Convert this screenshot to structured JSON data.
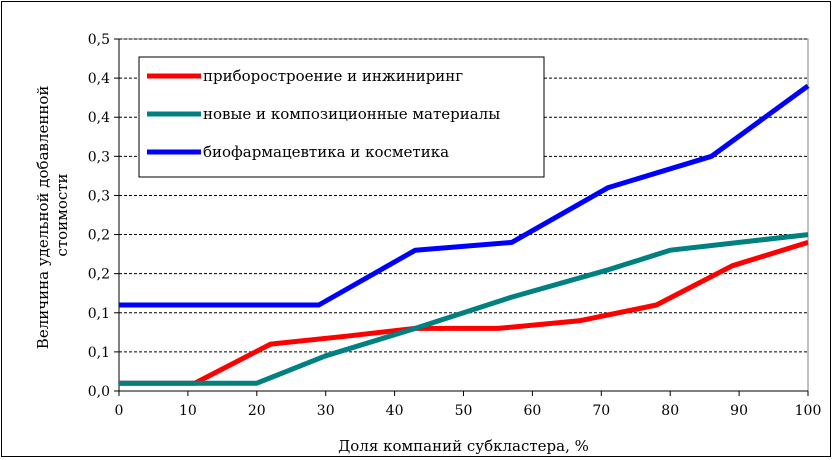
{
  "chart_data": {
    "type": "line",
    "title": "",
    "xlabel": "Доля компаний субкластера, %",
    "ylabel": "Величина удельной добавленной стоимости",
    "ylabel_lines": [
      "Величина удельной добавленной",
      "стоимости"
    ],
    "x_ticks": [
      "0",
      "10",
      "20",
      "30",
      "40",
      "50",
      "60",
      "70",
      "80",
      "90",
      "100"
    ],
    "y_ticks": [
      "0,0",
      "0,1",
      "0,1",
      "0,2",
      "0,2",
      "0,3",
      "0,3",
      "0,4",
      "0,4",
      "0,5"
    ],
    "xlim": [
      0,
      100
    ],
    "ylim": [
      0,
      0.45
    ],
    "grid": "horizontal-dashed",
    "legend_position": "top-left",
    "series": [
      {
        "name": "приборостроение и инжиниринг",
        "color": "#ff0000",
        "points": [
          [
            0,
            0.01
          ],
          [
            11,
            0.01
          ],
          [
            22,
            0.06
          ],
          [
            33,
            0.07
          ],
          [
            43,
            0.08
          ],
          [
            55,
            0.08
          ],
          [
            67,
            0.09
          ],
          [
            78,
            0.11
          ],
          [
            89,
            0.16
          ],
          [
            100,
            0.19
          ]
        ]
      },
      {
        "name": "новые и композиционные материалы",
        "color": "#008080",
        "points": [
          [
            0,
            0.01
          ],
          [
            20,
            0.01
          ],
          [
            30,
            0.045
          ],
          [
            43,
            0.08
          ],
          [
            57,
            0.12
          ],
          [
            71,
            0.155
          ],
          [
            80,
            0.18
          ],
          [
            100,
            0.2
          ]
        ]
      },
      {
        "name": "биофармацевтика и косметика",
        "color": "#0000ff",
        "points": [
          [
            0,
            0.11
          ],
          [
            29,
            0.11
          ],
          [
            43,
            0.18
          ],
          [
            57,
            0.19
          ],
          [
            71,
            0.26
          ],
          [
            86,
            0.3
          ],
          [
            100,
            0.39
          ]
        ]
      }
    ]
  }
}
